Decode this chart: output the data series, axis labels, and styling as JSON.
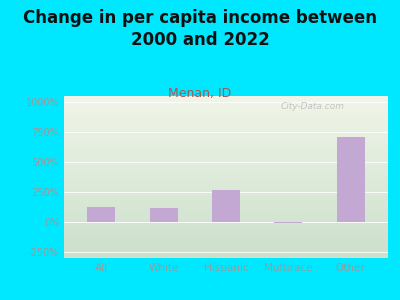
{
  "title": "Change in per capita income between\n2000 and 2022",
  "subtitle": "Menan, ID",
  "categories": [
    "All",
    "White",
    "Hispanic",
    "Multirace",
    "Other"
  ],
  "values": [
    125,
    120,
    270,
    -12,
    710
  ],
  "bar_color": "#c4a8d4",
  "background_outer": "#00e8ff",
  "background_top": "#f0f5e8",
  "background_bottom": "#cce0cc",
  "title_color": "#111111",
  "subtitle_color": "#aa5555",
  "tick_label_color": "#999999",
  "ylim": [
    -300,
    1050
  ],
  "yticks": [
    -250,
    0,
    250,
    500,
    750,
    1000
  ],
  "ytick_labels": [
    "-250%",
    "0%",
    "250%",
    "500%",
    "750%",
    "1000%"
  ],
  "watermark": "City-Data.com",
  "title_fontsize": 12,
  "subtitle_fontsize": 9
}
